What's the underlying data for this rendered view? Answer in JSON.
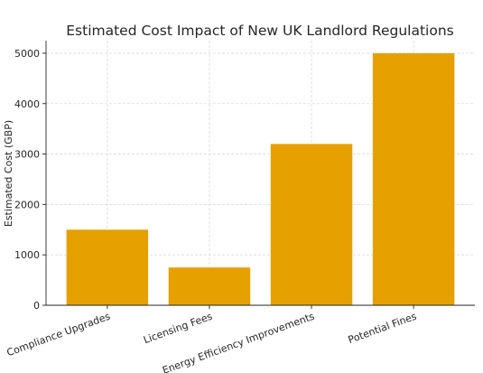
{
  "chart_data": {
    "type": "bar",
    "title": "Estimated Cost Impact of New UK Landlord Regulations",
    "xlabel": "",
    "ylabel": "Estimated Cost (GBP)",
    "categories": [
      "Compliance Upgrades",
      "Licensing Fees",
      "Energy Efficiency Improvements",
      "Potential Fines"
    ],
    "values": [
      1500,
      750,
      3200,
      5000
    ],
    "ylim": [
      0,
      5250
    ],
    "yticks": [
      0,
      1000,
      2000,
      3000,
      4000,
      5000
    ],
    "bar_color": "#e6a000",
    "grid": true,
    "x_tick_rotation": 20
  }
}
